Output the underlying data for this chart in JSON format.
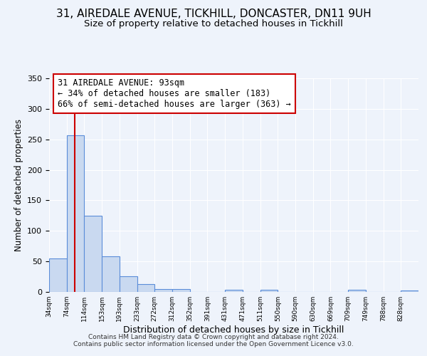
{
  "title": "31, AIREDALE AVENUE, TICKHILL, DONCASTER, DN11 9UH",
  "subtitle": "Size of property relative to detached houses in Tickhill",
  "xlabel": "Distribution of detached houses by size in Tickhill",
  "ylabel": "Number of detached properties",
  "footer_line1": "Contains HM Land Registry data © Crown copyright and database right 2024.",
  "footer_line2": "Contains public sector information licensed under the Open Government Licence v3.0.",
  "bin_labels": [
    "34sqm",
    "74sqm",
    "114sqm",
    "153sqm",
    "193sqm",
    "233sqm",
    "272sqm",
    "312sqm",
    "352sqm",
    "391sqm",
    "431sqm",
    "471sqm",
    "511sqm",
    "550sqm",
    "590sqm",
    "630sqm",
    "669sqm",
    "709sqm",
    "749sqm",
    "788sqm",
    "828sqm"
  ],
  "bar_values": [
    55,
    257,
    125,
    58,
    26,
    13,
    5,
    5,
    0,
    0,
    3,
    0,
    3,
    0,
    0,
    0,
    0,
    4,
    0,
    0,
    2
  ],
  "bar_color": "#c9d9f0",
  "bar_edge_color": "#5b8dd9",
  "bin_edges": [
    34,
    74,
    114,
    153,
    193,
    233,
    272,
    312,
    352,
    391,
    431,
    471,
    511,
    550,
    590,
    630,
    669,
    709,
    749,
    788,
    828
  ],
  "property_sqm": 93,
  "annotation_title": "31 AIREDALE AVENUE: 93sqm",
  "annotation_line1": "← 34% of detached houses are smaller (183)",
  "annotation_line2": "66% of semi-detached houses are larger (363) →",
  "annotation_box_color": "#ffffff",
  "annotation_box_edge": "#cc0000",
  "ylim": [
    0,
    350
  ],
  "yticks": [
    0,
    50,
    100,
    150,
    200,
    250,
    300,
    350
  ],
  "background_color": "#eef3fb",
  "grid_color": "#ffffff",
  "red_line_color": "#cc0000",
  "title_fontsize": 11,
  "subtitle_fontsize": 9.5,
  "xlabel_fontsize": 9,
  "ylabel_fontsize": 8.5
}
